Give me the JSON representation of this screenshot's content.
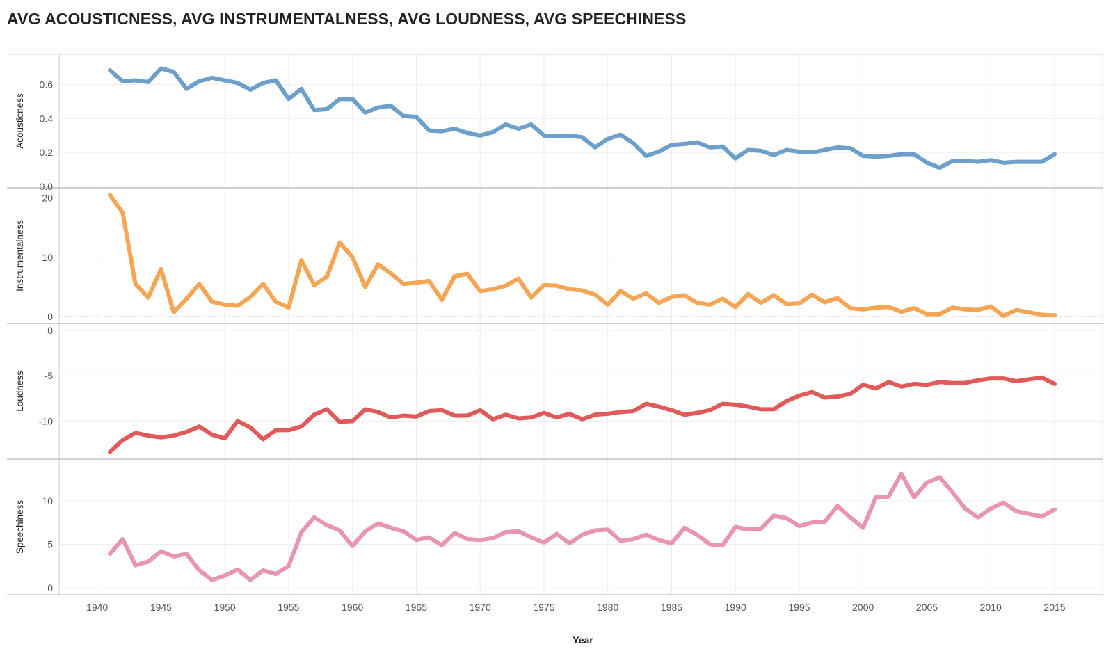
{
  "title": "AVG ACOUSTICNESS,  AVG INSTRUMENTALNESS, AVG LOUDNESS, AVG SPEECHINESS",
  "chart_data": {
    "type": "line",
    "title": "AVG ACOUSTICNESS,  AVG INSTRUMENTALNESS, AVG LOUDNESS, AVG SPEECHINESS",
    "xlabel": "Year",
    "x": [
      1941,
      1942,
      1943,
      1944,
      1945,
      1946,
      1947,
      1948,
      1949,
      1950,
      1951,
      1952,
      1953,
      1954,
      1955,
      1956,
      1957,
      1958,
      1959,
      1960,
      1961,
      1962,
      1963,
      1964,
      1965,
      1966,
      1967,
      1968,
      1969,
      1970,
      1971,
      1972,
      1973,
      1974,
      1975,
      1976,
      1977,
      1978,
      1979,
      1980,
      1981,
      1982,
      1983,
      1984,
      1985,
      1986,
      1987,
      1988,
      1989,
      1990,
      1991,
      1992,
      1993,
      1994,
      1995,
      1996,
      1997,
      1998,
      1999,
      2000,
      2001,
      2002,
      2003,
      2004,
      2005,
      2006,
      2007,
      2008,
      2009,
      2010,
      2011,
      2012,
      2013,
      2014,
      2015
    ],
    "x_ticks": [
      "1940",
      "1945",
      "1950",
      "1955",
      "1960",
      "1965",
      "1970",
      "1975",
      "1980",
      "1985",
      "1990",
      "1995",
      "2000",
      "2005",
      "2010",
      "2015"
    ],
    "grid": true,
    "series": [
      {
        "name": "Acousticness",
        "color": "#6c9fc9",
        "ylim": [
          0,
          0.75
        ],
        "y_ticks": [
          "0.0",
          "0.2",
          "0.4",
          "0.6"
        ],
        "y_tick_values": [
          0,
          0.2,
          0.4,
          0.6
        ],
        "values": [
          0.685,
          0.62,
          0.625,
          0.615,
          0.695,
          0.675,
          0.575,
          0.62,
          0.64,
          0.625,
          0.61,
          0.57,
          0.61,
          0.625,
          0.515,
          0.575,
          0.45,
          0.455,
          0.515,
          0.515,
          0.435,
          0.465,
          0.475,
          0.415,
          0.41,
          0.33,
          0.325,
          0.34,
          0.315,
          0.3,
          0.32,
          0.365,
          0.34,
          0.365,
          0.3,
          0.295,
          0.3,
          0.29,
          0.23,
          0.28,
          0.305,
          0.255,
          0.18,
          0.205,
          0.245,
          0.25,
          0.26,
          0.23,
          0.235,
          0.165,
          0.215,
          0.21,
          0.185,
          0.215,
          0.205,
          0.2,
          0.215,
          0.23,
          0.225,
          0.18,
          0.175,
          0.18,
          0.19,
          0.19,
          0.14,
          0.11,
          0.15,
          0.15,
          0.145,
          0.155,
          0.14,
          0.145,
          0.145,
          0.145,
          0.19
        ]
      },
      {
        "name": "Instrumentalness",
        "color": "#f5a554",
        "ylim": [
          0,
          21
        ],
        "y_ticks": [
          "0",
          "10",
          "20"
        ],
        "y_tick_values": [
          0,
          10,
          20
        ],
        "values": [
          20.5,
          17.5,
          5.5,
          3.2,
          8.0,
          0.7,
          3.0,
          5.5,
          2.5,
          2.0,
          1.8,
          3.3,
          5.5,
          2.5,
          1.5,
          9.5,
          5.3,
          6.7,
          12.5,
          10.0,
          5.0,
          8.8,
          7.3,
          5.5,
          5.7,
          6.0,
          2.8,
          6.8,
          7.2,
          4.3,
          4.6,
          5.2,
          6.4,
          3.2,
          5.3,
          5.2,
          4.6,
          4.4,
          3.7,
          2.0,
          4.3,
          3.0,
          3.9,
          2.3,
          3.3,
          3.6,
          2.3,
          2.0,
          3.0,
          1.6,
          3.8,
          2.3,
          3.6,
          2.1,
          2.2,
          3.7,
          2.4,
          3.1,
          1.4,
          1.2,
          1.5,
          1.6,
          0.8,
          1.4,
          0.4,
          0.4,
          1.5,
          1.2,
          1.1,
          1.7,
          0.1,
          1.1,
          0.7,
          0.3,
          0.2
        ]
      },
      {
        "name": "Loudness",
        "color": "#e05a5a",
        "ylim": [
          -13.5,
          0
        ],
        "y_ticks": [
          "0",
          "-5",
          "-10"
        ],
        "y_tick_values": [
          0,
          -5,
          -10
        ],
        "values": [
          -13.4,
          -12.1,
          -11.3,
          -11.6,
          -11.8,
          -11.6,
          -11.2,
          -10.6,
          -11.5,
          -11.9,
          -10.0,
          -10.7,
          -12.0,
          -11.0,
          -11.0,
          -10.6,
          -9.3,
          -8.7,
          -10.1,
          -10.0,
          -8.7,
          -9.0,
          -9.6,
          -9.4,
          -9.5,
          -8.9,
          -8.8,
          -9.4,
          -9.4,
          -8.8,
          -9.8,
          -9.3,
          -9.7,
          -9.6,
          -9.1,
          -9.6,
          -9.2,
          -9.8,
          -9.3,
          -9.2,
          -9.0,
          -8.9,
          -8.1,
          -8.4,
          -8.8,
          -9.3,
          -9.1,
          -8.8,
          -8.1,
          -8.2,
          -8.4,
          -8.7,
          -8.7,
          -7.8,
          -7.2,
          -6.8,
          -7.4,
          -7.3,
          -7.0,
          -6.0,
          -6.4,
          -5.7,
          -6.2,
          -5.9,
          -6.0,
          -5.7,
          -5.8,
          -5.8,
          -5.5,
          -5.3,
          -5.3,
          -5.6,
          -5.4,
          -5.2,
          -5.9
        ]
      },
      {
        "name": "Speechiness",
        "color": "#e895b3",
        "ylim": [
          0,
          14
        ],
        "y_ticks": [
          "0",
          "5",
          "10"
        ],
        "y_tick_values": [
          0,
          5,
          10
        ],
        "values": [
          3.9,
          5.6,
          2.6,
          3.0,
          4.2,
          3.6,
          3.9,
          2.0,
          0.9,
          1.4,
          2.1,
          0.9,
          2.0,
          1.6,
          2.5,
          6.4,
          8.1,
          7.2,
          6.6,
          4.8,
          6.5,
          7.4,
          6.9,
          6.5,
          5.5,
          5.8,
          4.9,
          6.3,
          5.6,
          5.5,
          5.7,
          6.4,
          6.5,
          5.8,
          5.2,
          6.2,
          5.1,
          6.1,
          6.6,
          6.7,
          5.4,
          5.6,
          6.1,
          5.5,
          5.1,
          6.9,
          6.1,
          5.0,
          4.9,
          7.0,
          6.7,
          6.8,
          8.3,
          8.0,
          7.1,
          7.5,
          7.6,
          9.4,
          8.1,
          6.9,
          10.4,
          10.5,
          13.1,
          10.4,
          12.1,
          12.7,
          11.0,
          9.1,
          8.1,
          9.1,
          9.8,
          8.8,
          8.5,
          8.2,
          9.0
        ]
      }
    ]
  }
}
